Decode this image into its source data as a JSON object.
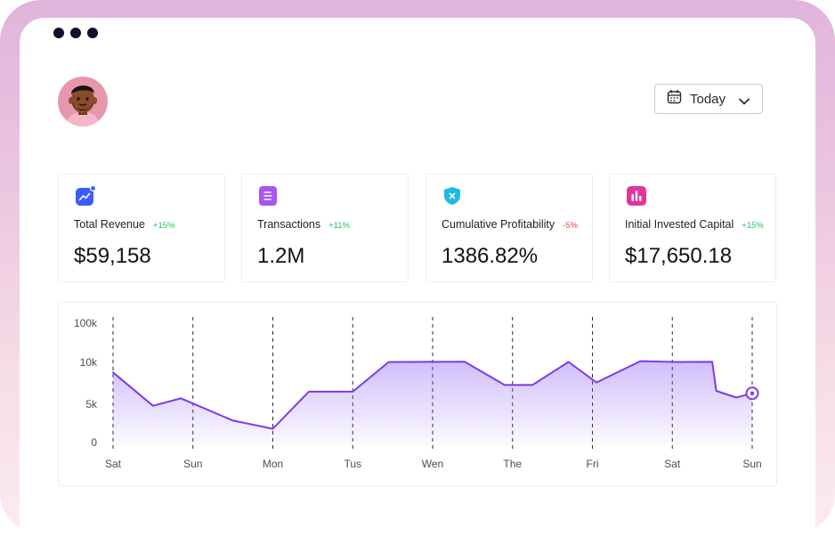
{
  "window": {
    "dots": [
      "dot",
      "dot",
      "dot"
    ]
  },
  "header": {
    "avatar": "avatar",
    "date_picker": {
      "icon": "calendar-icon",
      "label": "Today",
      "chevron": "chevron-down-icon"
    }
  },
  "stats": [
    {
      "label": "Total Revenue",
      "delta": "+15%",
      "trend": "up",
      "value": "$59,158",
      "icon": "trend-chart-icon",
      "color": "#3b5bff"
    },
    {
      "label": "Transactions",
      "delta": "+11%",
      "trend": "up",
      "value": "1.2M",
      "icon": "document-icon",
      "color": "#a855f7"
    },
    {
      "label": "Cumulative Profitability",
      "delta": "-5%",
      "trend": "down",
      "value": "1386.82%",
      "icon": "shield-icon",
      "color": "#22b8e6"
    },
    {
      "label": "Initial Invested Capital",
      "delta": "+15%",
      "trend": "up",
      "value": "$17,650.18",
      "icon": "bar-chart-icon",
      "color": "#e0369b"
    }
  ],
  "chart_data": {
    "type": "area",
    "y_ticks": [
      "100k",
      "10k",
      "5k",
      "0"
    ],
    "x_labels": [
      "Sat",
      "Sun",
      "Mon",
      "Tus",
      "Wen",
      "The",
      "Fri",
      "Sat",
      "Sun"
    ],
    "x": [
      0,
      0.5,
      0.85,
      1.5,
      2.0,
      2.45,
      3.0,
      3.45,
      4.0,
      4.4,
      4.9,
      5.25,
      5.7,
      6.05,
      6.6,
      7.1,
      7.2,
      7.5,
      7.55,
      7.8,
      8.0
    ],
    "values": [
      8800,
      4800,
      5700,
      3000,
      2000,
      6500,
      6500,
      10800,
      11200,
      11400,
      7300,
      7300,
      11100,
      7600,
      12800,
      10900,
      11100,
      11200,
      6600,
      5800,
      6300
    ],
    "grid": "vertical dashed",
    "color": "#7c3aed"
  }
}
